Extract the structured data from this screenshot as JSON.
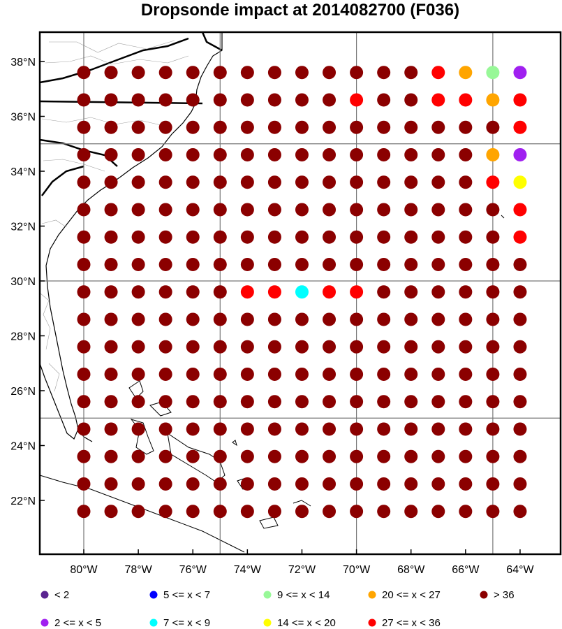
{
  "title": "Dropsonde impact at 2014082700 (F036)",
  "chart_data": {
    "type": "scatter",
    "title": "Dropsonde impact at 2014082700 (F036)",
    "xlabel": "",
    "ylabel": "",
    "xlim": [
      -81.6,
      -62.9
    ],
    "ylim": [
      20.3,
      39.1
    ],
    "grid": true,
    "x_ticks": [
      -80,
      -78,
      -76,
      -74,
      -72,
      -70,
      -68,
      -66,
      -64
    ],
    "x_tick_labels": [
      "80°W",
      "78°W",
      "76°W",
      "74°W",
      "72°W",
      "70°W",
      "68°W",
      "66°W",
      "64°W"
    ],
    "y_ticks": [
      22,
      24,
      26,
      28,
      30,
      32,
      34,
      36,
      38
    ],
    "y_tick_labels": [
      "22°N",
      "24°N",
      "26°N",
      "28°N",
      "30°N",
      "32°N",
      "34°N",
      "36°N",
      "38°N"
    ],
    "grid_x": [
      -80,
      -75,
      -70,
      -65
    ],
    "grid_y": [
      25,
      30,
      35
    ],
    "lons": [
      -80,
      -79,
      -78,
      -77,
      -76,
      -75,
      -74,
      -73,
      -72,
      -71,
      -70,
      -69,
      -68,
      -67,
      -66,
      -65,
      -64
    ],
    "lats": [
      37.6,
      36.6,
      35.6,
      34.6,
      33.6,
      32.6,
      31.6,
      30.6,
      29.6,
      28.6,
      27.6,
      26.6,
      25.6,
      24.6,
      23.6,
      22.6,
      21.6
    ],
    "grid_codes": [
      "0000000000000G352",
      "0000000000G00GG3G",
      "0000000000000000G",
      "00000000000000032",
      "000000000000000G4",
      "0000000000000000G",
      "0000000000000000G",
      "00000000000000000",
      "000000GG19G000000",
      "00000000000000000",
      "00000000000000000",
      "00000000000000000",
      "00000000000000000",
      "00000000000000000",
      "00000000000000000",
      "00000000000000000",
      "00000000000000000"
    ],
    "grid_codes_note": "",
    "categories": [
      "< 2",
      "2 <= x <  5",
      "5 <= x <  7",
      "7 <= x <  9",
      "9 <= x < 14",
      "14 <= x < 20",
      "20 <= x < 27",
      "27 <= x < 36",
      "> 36"
    ],
    "category_colors": [
      "#5a2490",
      "#a020f0",
      "#0000ff",
      "#00ffff",
      "#98f898",
      "#ffff00",
      "#ffa500",
      "#ff0000",
      "#8b0000"
    ]
  },
  "legend": [
    {
      "label": "<  2",
      "color": "#5a2490"
    },
    {
      "label": "2 <= x <  5",
      "color": "#a020f0"
    },
    {
      "label": "5 <= x <  7",
      "color": "#0000ff"
    },
    {
      "label": "7 <= x <  9",
      "color": "#00ffff"
    },
    {
      "label": "9 <= x < 14",
      "color": "#98f898"
    },
    {
      "label": "14 <= x < 20",
      "color": "#ffff00"
    },
    {
      "label": "20 <= x < 27",
      "color": "#ffa500"
    },
    {
      "label": "27 <= x < 36",
      "color": "#ff0000"
    },
    {
      "label": "> 36",
      "color": "#8b0000"
    }
  ]
}
